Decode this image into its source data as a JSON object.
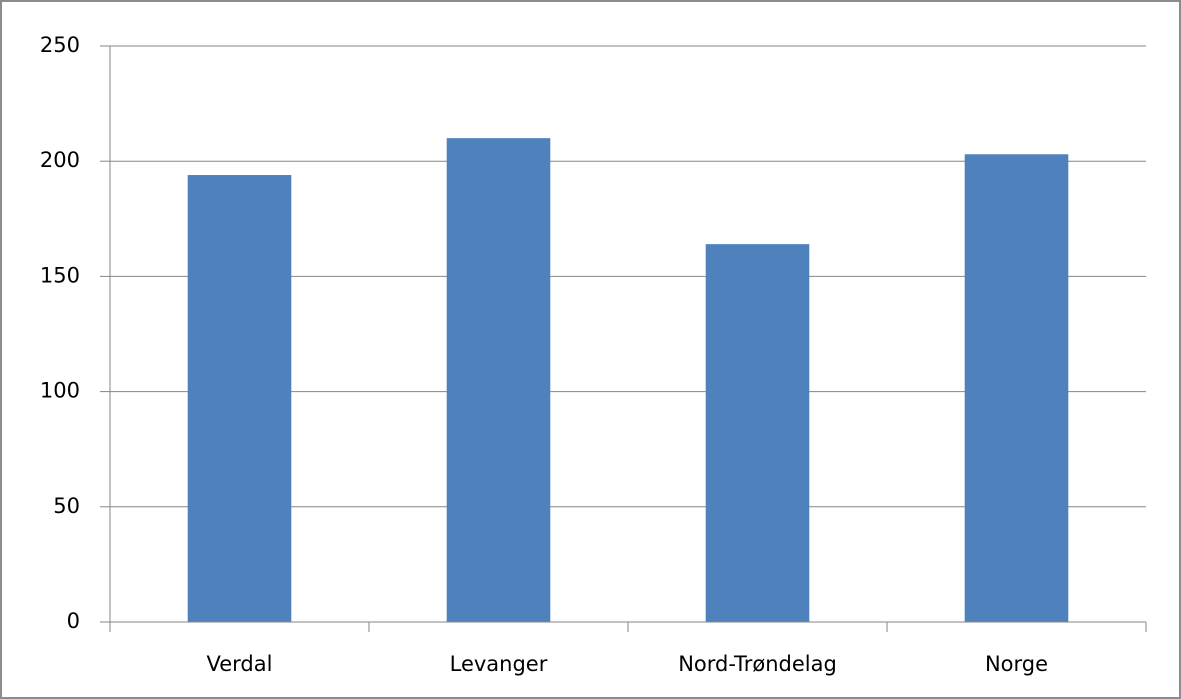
{
  "chart_data": {
    "type": "bar",
    "categories": [
      "Verdal",
      "Levanger",
      "Nord-Trøndelag",
      "Norge"
    ],
    "values": [
      194,
      210,
      164,
      203
    ],
    "color": "#4f81bd",
    "ylim": [
      0,
      250
    ],
    "yticks": [
      0,
      50,
      100,
      150,
      200,
      250
    ],
    "grid": true
  }
}
